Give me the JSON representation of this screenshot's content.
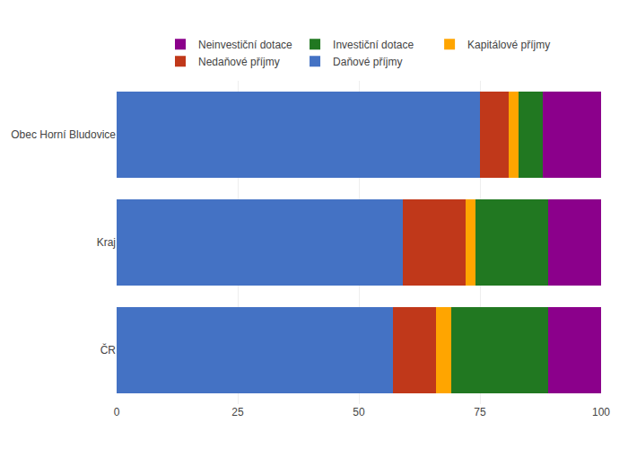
{
  "chart_data": {
    "type": "bar",
    "orientation": "horizontal",
    "stacked": true,
    "categories": [
      "ČR",
      "Kraj",
      "Obec Horní Bludovice"
    ],
    "series": [
      {
        "name": "Daňové příjmy",
        "color": "#4472C4",
        "values": [
          57,
          59,
          75
        ]
      },
      {
        "name": "Nedaňové příjmy",
        "color": "#C0381A",
        "values": [
          9,
          13,
          6
        ]
      },
      {
        "name": "Kapitálové příjmy",
        "color": "#FFA500",
        "values": [
          3,
          2,
          2
        ]
      },
      {
        "name": "Investiční dotace",
        "color": "#217821",
        "values": [
          20,
          15,
          5
        ]
      },
      {
        "name": "Neinvestiční dotace",
        "color": "#8B008B",
        "values": [
          11,
          11,
          12
        ]
      }
    ],
    "xlim": [
      0,
      100
    ],
    "xticks": [
      0,
      25,
      50,
      75,
      100
    ],
    "grid": true,
    "legend": "top"
  }
}
